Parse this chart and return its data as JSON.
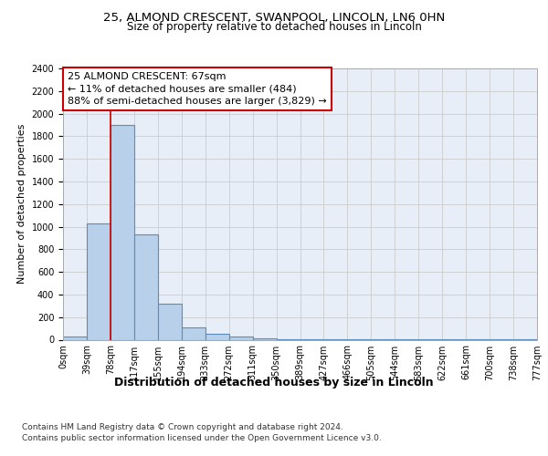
{
  "title_line1": "25, ALMOND CRESCENT, SWANPOOL, LINCOLN, LN6 0HN",
  "title_line2": "Size of property relative to detached houses in Lincoln",
  "xlabel": "Distribution of detached houses by size in Lincoln",
  "ylabel": "Number of detached properties",
  "bar_values": [
    30,
    1030,
    1900,
    930,
    320,
    105,
    50,
    30,
    15,
    5,
    2,
    2,
    1,
    1,
    1,
    1,
    1,
    1,
    1,
    1
  ],
  "bar_labels": [
    "0sqm",
    "39sqm",
    "78sqm",
    "117sqm",
    "155sqm",
    "194sqm",
    "233sqm",
    "272sqm",
    "311sqm",
    "350sqm",
    "389sqm",
    "427sqm",
    "466sqm",
    "505sqm",
    "544sqm",
    "583sqm",
    "622sqm",
    "661sqm",
    "700sqm",
    "738sqm",
    "777sqm"
  ],
  "bar_color": "#b8d0ea",
  "bar_edge_color": "#5b8db8",
  "bar_edge_width": 0.8,
  "grid_color": "#cccccc",
  "background_color": "#e8eef8",
  "annotation_text": "25 ALMOND CRESCENT: 67sqm\n← 11% of detached houses are smaller (484)\n88% of semi-detached houses are larger (3,829) →",
  "annotation_box_color": "#ffffff",
  "annotation_box_edge": "#cc0000",
  "vline_x": 2.0,
  "vline_color": "#cc0000",
  "ylim": [
    0,
    2400
  ],
  "yticks": [
    0,
    200,
    400,
    600,
    800,
    1000,
    1200,
    1400,
    1600,
    1800,
    2000,
    2200,
    2400
  ],
  "footer_line1": "Contains HM Land Registry data © Crown copyright and database right 2024.",
  "footer_line2": "Contains public sector information licensed under the Open Government Licence v3.0.",
  "title_fontsize": 9.5,
  "subtitle_fontsize": 8.5,
  "xlabel_fontsize": 9,
  "ylabel_fontsize": 8,
  "tick_fontsize": 7,
  "annotation_fontsize": 8,
  "footer_fontsize": 6.5
}
